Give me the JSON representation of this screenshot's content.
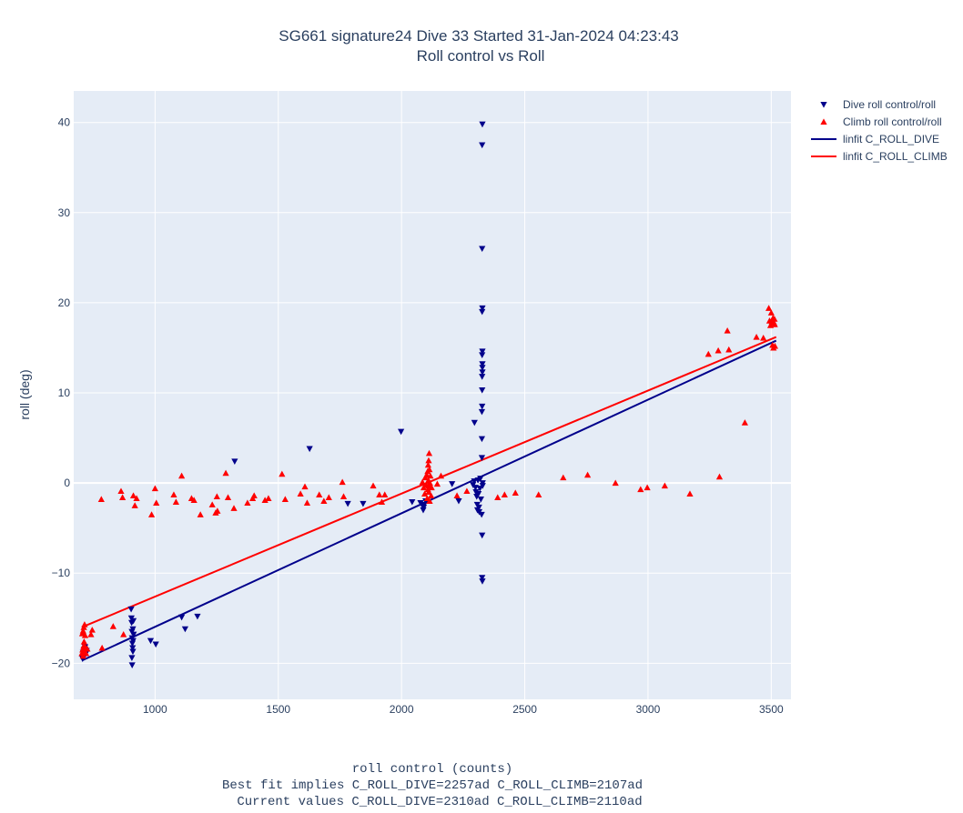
{
  "chart_data": {
    "type": "scatter",
    "title": "SG661 signature24 Dive 33 Started 31-Jan-2024 04:23:43",
    "subtitle": "Roll control vs Roll",
    "xlabel": "roll control (counts)",
    "xlabel_lines": [
      "Best fit implies C_ROLL_DIVE=2257ad C_ROLL_CLIMB=2107ad",
      "Current values C_ROLL_DIVE=2310ad C_ROLL_CLIMB=2110ad"
    ],
    "ylabel": "roll (deg)",
    "xlim": [
      670,
      3580
    ],
    "ylim": [
      -24,
      43.5
    ],
    "xticks": [
      1000,
      1500,
      2000,
      2500,
      3000,
      3500
    ],
    "yticks": [
      -20,
      -10,
      0,
      10,
      20,
      30,
      40
    ],
    "grid": true,
    "legend_position": "top-right",
    "series": [
      {
        "name": "Dive roll control/roll",
        "marker": "triangle-down",
        "color": "#00008b",
        "points": [
          [
            706,
            -19.5
          ],
          [
            708,
            -18.8
          ],
          [
            712,
            -18.5
          ],
          [
            716,
            -18.2
          ],
          [
            718,
            -19.0
          ],
          [
            722,
            -18.6
          ],
          [
            903,
            -14.0
          ],
          [
            904,
            -15.0
          ],
          [
            905,
            -15.5
          ],
          [
            906,
            -16.5
          ],
          [
            907,
            -17.2
          ],
          [
            908,
            -17.8
          ],
          [
            909,
            -18.3
          ],
          [
            910,
            -18.7
          ],
          [
            906,
            -19.4
          ],
          [
            907,
            -20.2
          ],
          [
            912,
            -15.3
          ],
          [
            911,
            -17.5
          ],
          [
            913,
            -16.8
          ],
          [
            910,
            -16.2
          ],
          [
            982,
            -17.5
          ],
          [
            1003,
            -17.9
          ],
          [
            1108,
            -14.9
          ],
          [
            1122,
            -16.2
          ],
          [
            1172,
            -14.8
          ],
          [
            1323,
            2.4
          ],
          [
            1627,
            3.8
          ],
          [
            1782,
            -2.3
          ],
          [
            1844,
            -2.3
          ],
          [
            1998,
            5.7
          ],
          [
            2043,
            -2.1
          ],
          [
            2077,
            -2.2
          ],
          [
            2085,
            -2.5
          ],
          [
            2088,
            -3.0
          ],
          [
            2090,
            -2.7
          ],
          [
            2092,
            -2.4
          ],
          [
            2098,
            -2.0
          ],
          [
            2205,
            -0.1
          ],
          [
            2232,
            -2.0
          ],
          [
            2290,
            -0.2
          ],
          [
            2295,
            0.2
          ],
          [
            2296,
            6.7
          ],
          [
            2300,
            -0.5
          ],
          [
            2302,
            -1.0
          ],
          [
            2305,
            -1.5
          ],
          [
            2307,
            -2.4
          ],
          [
            2308,
            -3.0
          ],
          [
            2310,
            0.3
          ],
          [
            2312,
            -1.2
          ],
          [
            2314,
            -2.7
          ],
          [
            2315,
            -3.2
          ],
          [
            2318,
            -0.6
          ],
          [
            2320,
            0.5
          ],
          [
            2322,
            -1.8
          ],
          [
            2325,
            -3.5
          ],
          [
            2326,
            2.8
          ],
          [
            2326,
            4.9
          ],
          [
            2326,
            7.9
          ],
          [
            2327,
            8.5
          ],
          [
            2327,
            10.3
          ],
          [
            2327,
            11.8
          ],
          [
            2328,
            12.3
          ],
          [
            2328,
            12.8
          ],
          [
            2328,
            13.2
          ],
          [
            2327,
            14.2
          ],
          [
            2328,
            14.6
          ],
          [
            2327,
            19.0
          ],
          [
            2328,
            19.4
          ],
          [
            2327,
            26.0
          ],
          [
            2327,
            37.5
          ],
          [
            2328,
            39.8
          ],
          [
            2327,
            -5.8
          ],
          [
            2327,
            -10.5
          ],
          [
            2328,
            -10.9
          ],
          [
            2329,
            0.0
          ],
          [
            2329,
            -0.3
          ]
        ]
      },
      {
        "name": "Climb roll control/roll",
        "marker": "triangle-up",
        "color": "#ff0000",
        "points": [
          [
            703,
            -18.9
          ],
          [
            706,
            -18.5
          ],
          [
            708,
            -19.2
          ],
          [
            710,
            -18.1
          ],
          [
            712,
            -17.6
          ],
          [
            714,
            -18.7
          ],
          [
            717,
            -18.2
          ],
          [
            705,
            -16.7
          ],
          [
            708,
            -16.4
          ],
          [
            711,
            -16.0
          ],
          [
            714,
            -15.7
          ],
          [
            716,
            -16.9
          ],
          [
            720,
            -18.9
          ],
          [
            725,
            -18.4
          ],
          [
            740,
            -16.8
          ],
          [
            745,
            -16.3
          ],
          [
            785,
            -18.3
          ],
          [
            782,
            -1.8
          ],
          [
            830,
            -15.9
          ],
          [
            862,
            -0.9
          ],
          [
            868,
            -1.6
          ],
          [
            872,
            -16.8
          ],
          [
            912,
            -1.4
          ],
          [
            918,
            -2.5
          ],
          [
            925,
            -1.7
          ],
          [
            986,
            -3.5
          ],
          [
            1000,
            -0.6
          ],
          [
            1005,
            -2.2
          ],
          [
            1076,
            -1.3
          ],
          [
            1085,
            -2.1
          ],
          [
            1108,
            0.8
          ],
          [
            1148,
            -1.7
          ],
          [
            1158,
            -1.9
          ],
          [
            1184,
            -3.5
          ],
          [
            1232,
            -2.4
          ],
          [
            1246,
            -3.3
          ],
          [
            1251,
            -1.5
          ],
          [
            1253,
            -3.1
          ],
          [
            1287,
            1.1
          ],
          [
            1296,
            -1.6
          ],
          [
            1320,
            -2.8
          ],
          [
            1375,
            -2.2
          ],
          [
            1396,
            -1.7
          ],
          [
            1402,
            -1.4
          ],
          [
            1446,
            -1.9
          ],
          [
            1460,
            -1.7
          ],
          [
            1515,
            1.0
          ],
          [
            1528,
            -1.8
          ],
          [
            1590,
            -1.2
          ],
          [
            1608,
            -0.4
          ],
          [
            1617,
            -2.2
          ],
          [
            1666,
            -1.3
          ],
          [
            1685,
            -2.0
          ],
          [
            1705,
            -1.6
          ],
          [
            1760,
            0.1
          ],
          [
            1765,
            -1.5
          ],
          [
            1885,
            -0.3
          ],
          [
            1910,
            -1.3
          ],
          [
            1920,
            -2.1
          ],
          [
            1932,
            -1.3
          ],
          [
            2085,
            0.1
          ],
          [
            2090,
            -0.5
          ],
          [
            2094,
            -1.2
          ],
          [
            2096,
            0.6
          ],
          [
            2100,
            -0.2
          ],
          [
            2102,
            0.9
          ],
          [
            2104,
            -1.7
          ],
          [
            2106,
            1.3
          ],
          [
            2107,
            -0.7
          ],
          [
            2108,
            2.0
          ],
          [
            2109,
            0.3
          ],
          [
            2110,
            -1.0
          ],
          [
            2110,
            2.5
          ],
          [
            2111,
            -0.3
          ],
          [
            2112,
            3.3
          ],
          [
            2113,
            1.5
          ],
          [
            2114,
            -2.0
          ],
          [
            2115,
            0.0
          ],
          [
            2117,
            0.8
          ],
          [
            2120,
            -1.4
          ],
          [
            2122,
            -0.5
          ],
          [
            2145,
            -0.1
          ],
          [
            2160,
            0.8
          ],
          [
            2225,
            -1.4
          ],
          [
            2265,
            -0.9
          ],
          [
            2390,
            -1.6
          ],
          [
            2418,
            -1.3
          ],
          [
            2462,
            -1.1
          ],
          [
            2556,
            -1.3
          ],
          [
            2656,
            0.6
          ],
          [
            2755,
            0.9
          ],
          [
            2868,
            0.0
          ],
          [
            2970,
            -0.7
          ],
          [
            2997,
            -0.5
          ],
          [
            3068,
            -0.3
          ],
          [
            3170,
            -1.2
          ],
          [
            3245,
            14.3
          ],
          [
            3285,
            14.7
          ],
          [
            3290,
            0.7
          ],
          [
            3322,
            16.9
          ],
          [
            3328,
            14.8
          ],
          [
            3393,
            6.7
          ],
          [
            3440,
            16.2
          ],
          [
            3468,
            16.1
          ],
          [
            3490,
            19.4
          ],
          [
            3493,
            18.0
          ],
          [
            3497,
            17.5
          ],
          [
            3500,
            18.9
          ],
          [
            3503,
            17.9
          ],
          [
            3505,
            15.3
          ],
          [
            3507,
            18.3
          ],
          [
            3509,
            15.0
          ],
          [
            3511,
            17.8
          ],
          [
            3513,
            18.2
          ],
          [
            3514,
            17.6
          ],
          [
            3515,
            15.2
          ]
        ]
      },
      {
        "name": "linfit C_ROLL_DIVE",
        "type": "line",
        "color": "#00008b",
        "points": [
          [
            703,
            -19.7
          ],
          [
            3520,
            15.8
          ]
        ]
      },
      {
        "name": "linfit C_ROLL_CLIMB",
        "type": "line",
        "color": "#ff0000",
        "points": [
          [
            703,
            -16.0
          ],
          [
            3520,
            16.2
          ]
        ]
      }
    ]
  }
}
